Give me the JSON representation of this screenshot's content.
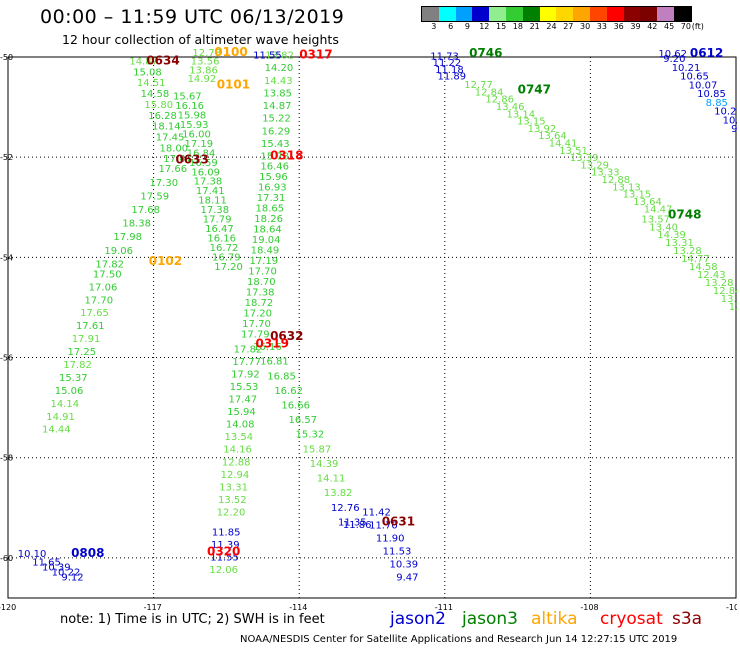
{
  "title": "00:00 – 11:59 UTC 06/13/2019",
  "subtitle": "12 hour collection of altimeter wave heights",
  "legend": {
    "unit": "(ft)",
    "labels": [
      "3",
      "6",
      "9",
      "12",
      "15",
      "18",
      "21",
      "24",
      "27",
      "30",
      "33",
      "36",
      "39",
      "42",
      "45",
      "70"
    ],
    "colors": [
      "#808080",
      "#00ffff",
      "#00a0ff",
      "#0000cc",
      "#90ee90",
      "#33cc33",
      "#008000",
      "#ffff00",
      "#ffd700",
      "#ffa500",
      "#ff4500",
      "#ff0000",
      "#8b0000",
      "#7b0000",
      "#c080c0",
      "#000000"
    ]
  },
  "axes": {
    "y_labels": [
      "-50",
      "-52",
      "-54",
      "-56",
      "-58",
      "-60"
    ],
    "x_labels": [
      "-120",
      "-117",
      "-114",
      "-111",
      "-108",
      "-105"
    ]
  },
  "colors": {
    "jason2": "#0000cc",
    "jason3": "#008000",
    "altika": "#ffa500",
    "cryosat": "#ff0000",
    "s3a": "#8b0000",
    "light_green": "#66dd44",
    "green": "#22aa22",
    "cyan": "#00a0ff"
  },
  "pass_labels": [
    {
      "text": "0634",
      "color": "#8b0000",
      "x": -117.15,
      "y": -50.15
    },
    {
      "text": "0100",
      "color": "#ffa500",
      "x": -115.75,
      "y": -49.98
    },
    {
      "text": "0317",
      "color": "#ff0000",
      "x": -114.0,
      "y": -50.03
    },
    {
      "text": "0101",
      "color": "#ffa500",
      "x": -115.7,
      "y": -50.63
    },
    {
      "text": "0633",
      "color": "#8b0000",
      "x": -116.55,
      "y": -52.13
    },
    {
      "text": "0318",
      "color": "#ff0000",
      "x": -114.6,
      "y": -52.05
    },
    {
      "text": "0102",
      "color": "#ffa500",
      "x": -117.1,
      "y": -54.15
    },
    {
      "text": "0632",
      "color": "#8b0000",
      "x": -114.6,
      "y": -55.65
    },
    {
      "text": "0319",
      "color": "#ff0000",
      "x": -114.9,
      "y": -55.8
    },
    {
      "text": "0631",
      "color": "#8b0000",
      "x": -112.3,
      "y": -59.35
    },
    {
      "text": "0320",
      "color": "#ff0000",
      "x": -115.9,
      "y": -59.95
    },
    {
      "text": "0808",
      "color": "#0000cc",
      "x": -118.7,
      "y": -59.98
    },
    {
      "text": "0746",
      "color": "#008000",
      "x": -110.5,
      "y": -50.0
    },
    {
      "text": "0747",
      "color": "#008000",
      "x": -109.5,
      "y": -50.73
    },
    {
      "text": "0748",
      "color": "#008000",
      "x": -106.4,
      "y": -53.22
    },
    {
      "text": "0612",
      "color": "#0000cc",
      "x": -105.95,
      "y": -50.0
    }
  ],
  "tracks": [
    {
      "name": "0634",
      "x0": -117.5,
      "y0": -50.15,
      "x1": -116.8,
      "y1": -52.1,
      "colors": [
        "#66dd44",
        "#33cc33",
        "#66dd44",
        "#33cc33",
        "#66dd44",
        "#33cc33",
        "#33cc33",
        "#33cc33",
        "#33cc33",
        "#33cc33"
      ],
      "values": [
        "14.87",
        "15.08",
        "14.51",
        "14.58",
        "15.80",
        "16.28",
        "18.14",
        "17.45",
        "18.00",
        "17.47"
      ]
    },
    {
      "name": "0633",
      "x0": -116.9,
      "y0": -52.3,
      "x1": -118.2,
      "y1": -54.2,
      "colors": [
        "#33cc33"
      ],
      "values": [
        "17.66",
        "17.30",
        "17.59",
        "17.68",
        "18.38",
        "17.98",
        "19.06",
        "17.82"
      ]
    },
    {
      "name": "0633b",
      "x0": -118.25,
      "y0": -54.4,
      "x1": -119.3,
      "y1": -57.5,
      "colors": [
        "#33cc33",
        "#33cc33",
        "#33cc33",
        "#66dd44",
        "#33cc33",
        "#66dd44",
        "#33cc33",
        "#66dd44",
        "#33cc33",
        "#33cc33",
        "#66dd44",
        "#66dd44"
      ],
      "values": [
        "17.50",
        "17.06",
        "17.70",
        "17.65",
        "17.61",
        "17.91",
        "17.25",
        "17.82",
        "15.37",
        "15.06",
        "14.14",
        "14.91",
        "14.44"
      ]
    },
    {
      "name": "0100",
      "x0": -116.2,
      "y0": -49.98,
      "x1": -116.3,
      "y1": -50.5,
      "colors": [
        "#66dd44"
      ],
      "values": [
        "12.78",
        "13.56",
        "13.86",
        "14.92"
      ]
    },
    {
      "name": "0101",
      "x0": -116.6,
      "y0": -50.85,
      "x1": -115.75,
      "y1": -54.25,
      "colors": [
        "#33cc33",
        "#33cc33",
        "#33cc33",
        "#33cc33",
        "#33cc33",
        "#33cc33",
        "#33cc33",
        "#33cc33",
        "#33cc33",
        "#33cc33",
        "#33cc33",
        "#33cc33",
        "#33cc33",
        "#33cc33",
        "#33cc33",
        "#33cc33",
        "#33cc33",
        "#33cc33",
        "#33cc33"
      ],
      "values": [
        "15.67",
        "16.16",
        "15.98",
        "15.93",
        "16.00",
        "17.19",
        "16.84",
        "16.59",
        "16.09",
        "17.38",
        "17.41",
        "18.11",
        "17.38",
        "17.79",
        "16.47",
        "16.16",
        "16.72",
        "16.79",
        "17.20"
      ]
    },
    {
      "name": "0317",
      "x0": -114.7,
      "y0": -50.03,
      "x1": -114.8,
      "y1": -52.05,
      "colors": [
        "#66dd44",
        "#33cc33",
        "#66dd44",
        "#33cc33",
        "#33cc33",
        "#33cc33",
        "#33cc33",
        "#33cc33",
        "#33cc33",
        "#33cc33"
      ],
      "values": [
        "13.82",
        "14.20",
        "14.43",
        "13.85",
        "14.87",
        "15.22",
        "16.29",
        "15.43",
        "15.78"
      ]
    },
    {
      "name": "0318",
      "x0": -114.8,
      "y0": -52.25,
      "x1": -115.2,
      "y1": -55.6,
      "colors": [
        "#33cc33"
      ],
      "values": [
        "16.46",
        "15.96",
        "16.93",
        "17.31",
        "18.65",
        "18.26",
        "18.64",
        "19.04",
        "18.49",
        "17.19",
        "17.70",
        "18.70",
        "17.38",
        "18.72",
        "17.20",
        "17.70",
        "17.79"
      ]
    },
    {
      "name": "0319",
      "x0": -115.35,
      "y0": -55.9,
      "x1": -115.7,
      "y1": -59.15,
      "colors": [
        "#33cc33",
        "#33cc33",
        "#33cc33",
        "#33cc33",
        "#33cc33",
        "#33cc33",
        "#33cc33",
        "#66dd44",
        "#66dd44",
        "#66dd44",
        "#66dd44",
        "#66dd44",
        "#66dd44",
        "#66dd44",
        "#66dd44",
        "#66dd44"
      ],
      "values": [
        "17.82",
        "17.77",
        "17.92",
        "15.53",
        "17.47",
        "15.94",
        "14.08",
        "13.54",
        "14.16",
        "12.88",
        "12.94",
        "13.31",
        "13.52",
        "12.20"
      ]
    },
    {
      "name": "0320",
      "x0": -115.8,
      "y0": -59.55,
      "x1": -115.85,
      "y1": -60.3,
      "colors": [
        "#0000cc",
        "#0000cc",
        "#0000cc",
        "#66dd44"
      ],
      "values": [
        "11.85",
        "11.39",
        "11.55",
        "12.06"
      ]
    },
    {
      "name": "0632",
      "x0": -114.95,
      "y0": -55.85,
      "x1": -113.2,
      "y1": -59.35,
      "colors": [
        "#33cc33",
        "#33cc33",
        "#33cc33",
        "#33cc33",
        "#33cc33",
        "#33cc33",
        "#33cc33",
        "#66dd44",
        "#66dd44",
        "#66dd44",
        "#66dd44",
        "#0000cc"
      ],
      "values": [
        "16.16",
        "16.81",
        "16.85",
        "16.62",
        "16.66",
        "16.57",
        "15.32",
        "15.87",
        "14.39",
        "14.11",
        "13.82",
        "12.76",
        "11.35"
      ]
    },
    {
      "name": "0631",
      "x0": -112.7,
      "y0": -59.15,
      "x1": -112.0,
      "y1": -60.45,
      "colors": [
        "#0000cc"
      ],
      "values": [
        "11.42",
        "11.70",
        "11.90",
        "11.53",
        "10.39",
        "9.47"
      ]
    },
    {
      "name": "0808",
      "x0": -119.5,
      "y0": -60.15,
      "x1": -118.9,
      "y1": -60.45,
      "colors": [
        "#0000cc"
      ],
      "values": [
        "11.65",
        "10.39",
        "10.22",
        "9.12"
      ]
    },
    {
      "name": "0746",
      "x0": -111.3,
      "y0": -50.05,
      "x1": -111.15,
      "y1": -50.45,
      "colors": [
        "#0000cc"
      ],
      "values": [
        "11.73",
        "11.22",
        "11.18",
        "11.89"
      ]
    },
    {
      "name": "0747",
      "x0": -110.6,
      "y0": -50.62,
      "x1": -106.9,
      "y1": -53.1,
      "colors": [
        "#66dd44"
      ],
      "values": [
        "12.77",
        "12.84",
        "12.86",
        "13.46",
        "13.14",
        "13.15",
        "13.92",
        "13.64",
        "14.41",
        "13.51",
        "13.39",
        "13.29",
        "13.33",
        "12.88",
        "13.13",
        "13.15",
        "13.64",
        "14.47"
      ]
    },
    {
      "name": "0748",
      "x0": -106.95,
      "y0": -53.3,
      "x1": -105.15,
      "y1": -55.05,
      "colors": [
        "#66dd44"
      ],
      "values": [
        "13.57",
        "13.40",
        "14.39",
        "13.31",
        "13.28",
        "14.77",
        "14.58",
        "12.43",
        "13.28",
        "12.84",
        "13.36",
        "12.77"
      ]
    },
    {
      "name": "0612",
      "x0": -106.5,
      "y0": -50.1,
      "x1": -105.1,
      "y1": -51.5,
      "colors": [
        "#0000cc",
        "#0000cc",
        "#0000cc",
        "#0000cc",
        "#0000cc",
        "#00a0ff",
        "#0000cc",
        "#0000cc",
        "#0000cc"
      ],
      "values": [
        "9.20",
        "10.21",
        "10.65",
        "10.07",
        "10.85",
        "8.85",
        "10.28",
        "10.10",
        "9.30"
      ]
    }
  ],
  "extra_values": [
    {
      "text": "10.62",
      "color": "#0000cc",
      "x": -106.6,
      "y": -50.0
    },
    {
      "text": "11.55",
      "color": "#0000cc",
      "x": -114.95,
      "y": -50.03
    },
    {
      "text": "10.10",
      "color": "#0000cc",
      "x": -119.8,
      "y": -59.98
    },
    {
      "text": "11.86",
      "color": "#0000cc",
      "x": -113.1,
      "y": -59.4
    }
  ],
  "note": "note:  1) Time is in UTC;  2) SWH is in feet",
  "satellites": [
    {
      "name": "jason2",
      "color": "#0000cc"
    },
    {
      "name": "jason3",
      "color": "#008000"
    },
    {
      "name": "altika",
      "color": "#ffa500"
    },
    {
      "name": "cryosat",
      "color": "#ff0000"
    },
    {
      "name": "s3a",
      "color": "#8b0000"
    }
  ],
  "credit": "NOAA/NESDIS Center for Satellite Applications and Research    Jun 14 12:27:15 UTC 2019"
}
